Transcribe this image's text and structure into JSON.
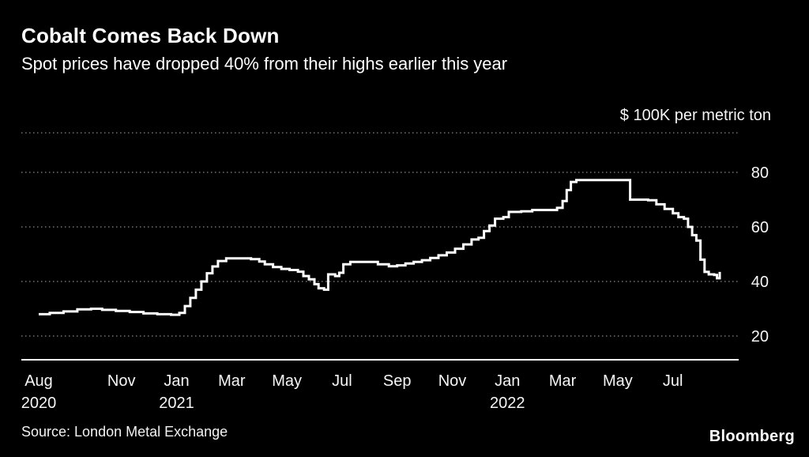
{
  "header": {
    "title": "Cobalt Comes Back Down",
    "subtitle": "Spot prices have dropped 40% from their highs earlier this year"
  },
  "footer": {
    "source": "Source: London Metal Exchange",
    "logo": "Bloomberg"
  },
  "chart_data": {
    "type": "line",
    "style": "step",
    "title": "Cobalt Comes Back Down",
    "subtitle": "Spot prices have dropped 40% from their highs earlier this year",
    "unit_label": "$ 100K per metric ton",
    "line_color": "#ffffff",
    "background_color": "#000000",
    "grid_color": "#8a8a8a",
    "axis_color": "#ffffff",
    "legend": "none",
    "grid": "dotted-horizontal",
    "ylim": [
      11.3,
      94.5
    ],
    "yticks": [
      20,
      40,
      60,
      80
    ],
    "extra_gridlines": [
      94.5
    ],
    "xticks": [
      {
        "idx": 0,
        "label": "Aug",
        "year": "2020"
      },
      {
        "idx": 3,
        "label": "Nov",
        "year": ""
      },
      {
        "idx": 5,
        "label": "Jan",
        "year": "2021"
      },
      {
        "idx": 7,
        "label": "Mar",
        "year": ""
      },
      {
        "idx": 9,
        "label": "May",
        "year": ""
      },
      {
        "idx": 11,
        "label": "Jul",
        "year": ""
      },
      {
        "idx": 13,
        "label": "Sep",
        "year": ""
      },
      {
        "idx": 15,
        "label": "Nov",
        "year": ""
      },
      {
        "idx": 17,
        "label": "Jan",
        "year": "2022"
      },
      {
        "idx": 19,
        "label": "Mar",
        "year": ""
      },
      {
        "idx": 21,
        "label": "May",
        "year": ""
      },
      {
        "idx": 23,
        "label": "Jul",
        "year": ""
      }
    ],
    "series": [
      {
        "name": "Cobalt spot price",
        "points": [
          [
            0,
            28
          ],
          [
            0.4,
            28.5
          ],
          [
            0.9,
            29
          ],
          [
            1.4,
            29.8
          ],
          [
            1.9,
            30
          ],
          [
            2.3,
            29.6
          ],
          [
            2.8,
            29.2
          ],
          [
            3.3,
            28.8
          ],
          [
            3.8,
            28.3
          ],
          [
            4.3,
            28
          ],
          [
            4.8,
            27.8
          ],
          [
            5.1,
            28.5
          ],
          [
            5.3,
            31
          ],
          [
            5.5,
            34
          ],
          [
            5.7,
            37
          ],
          [
            5.9,
            40
          ],
          [
            6.1,
            43
          ],
          [
            6.3,
            45.5
          ],
          [
            6.5,
            47.5
          ],
          [
            6.8,
            48.5
          ],
          [
            7.3,
            48.5
          ],
          [
            7.7,
            48.2
          ],
          [
            8.0,
            47.3
          ],
          [
            8.2,
            46.3
          ],
          [
            8.5,
            45.3
          ],
          [
            8.8,
            44.6
          ],
          [
            9.1,
            44.2
          ],
          [
            9.4,
            43.6
          ],
          [
            9.6,
            42
          ],
          [
            9.8,
            40.8
          ],
          [
            10.0,
            39
          ],
          [
            10.15,
            37.5
          ],
          [
            10.35,
            37
          ],
          [
            10.5,
            42.6
          ],
          [
            10.75,
            42
          ],
          [
            10.9,
            43.2
          ],
          [
            11.05,
            46.3
          ],
          [
            11.3,
            47.2
          ],
          [
            12.0,
            47.2
          ],
          [
            12.3,
            46.3
          ],
          [
            12.7,
            45.6
          ],
          [
            13.0,
            45.9
          ],
          [
            13.3,
            46.6
          ],
          [
            13.6,
            47.2
          ],
          [
            13.9,
            47.8
          ],
          [
            14.2,
            48.6
          ],
          [
            14.5,
            49.6
          ],
          [
            14.8,
            50.6
          ],
          [
            15.1,
            52
          ],
          [
            15.4,
            53.6
          ],
          [
            15.7,
            55.4
          ],
          [
            15.95,
            56
          ],
          [
            16.15,
            58.5
          ],
          [
            16.35,
            60.5
          ],
          [
            16.55,
            63
          ],
          [
            16.85,
            63.6
          ],
          [
            17.05,
            65.5
          ],
          [
            17.5,
            65.7
          ],
          [
            17.9,
            66.2
          ],
          [
            18.5,
            66.2
          ],
          [
            18.8,
            67
          ],
          [
            19.0,
            69.5
          ],
          [
            19.15,
            73.5
          ],
          [
            19.3,
            76.5
          ],
          [
            19.5,
            77.2
          ],
          [
            21.3,
            77.2
          ],
          [
            21.45,
            70
          ],
          [
            22.1,
            69.8
          ],
          [
            22.4,
            68.3
          ],
          [
            22.7,
            66.6
          ],
          [
            23.0,
            65
          ],
          [
            23.2,
            63.6
          ],
          [
            23.4,
            63
          ],
          [
            23.55,
            60
          ],
          [
            23.7,
            57
          ],
          [
            23.85,
            55
          ],
          [
            24.0,
            48
          ],
          [
            24.15,
            43.5
          ],
          [
            24.3,
            42.6
          ],
          [
            24.5,
            42.4
          ],
          [
            24.6,
            41.2
          ],
          [
            24.7,
            43.5
          ]
        ]
      }
    ]
  }
}
